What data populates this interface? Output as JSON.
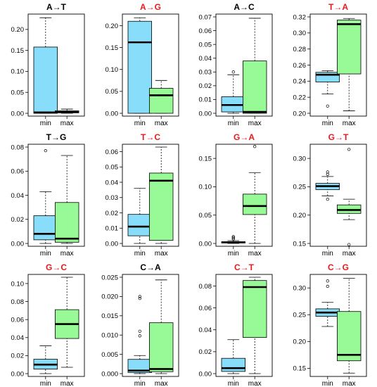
{
  "colors": {
    "min": "#87ddfa",
    "max": "#98fa96",
    "title_black": "#000000",
    "title_red": "#e8191c"
  },
  "chart_data": [
    {
      "type": "boxplot",
      "title": "A→T",
      "title_color": "red_false",
      "categories": [
        "min",
        "max"
      ],
      "ylim": [
        0,
        0.23
      ],
      "yticks": [
        0.0,
        0.05,
        0.1,
        0.15,
        0.2
      ],
      "ytick_labels": [
        "0.00",
        "0.05",
        "0.10",
        "0.15",
        "0.20"
      ],
      "boxes": [
        {
          "name": "min",
          "whisker_low": 0.0,
          "q1": 0.0,
          "median": 0.002,
          "q3": 0.158,
          "whisker_high": 0.228,
          "outliers": []
        },
        {
          "name": "max",
          "whisker_low": 0.0,
          "q1": 0.001,
          "median": 0.003,
          "q3": 0.006,
          "whisker_high": 0.01,
          "outliers": []
        }
      ]
    },
    {
      "type": "boxplot",
      "title": "A→G",
      "title_color": "red_true",
      "categories": [
        "min",
        "max"
      ],
      "ylim": [
        0,
        0.22
      ],
      "yticks": [
        0.0,
        0.05,
        0.1,
        0.15,
        0.2
      ],
      "ytick_labels": [
        "0.00",
        "0.05",
        "0.10",
        "0.15",
        "0.20"
      ],
      "boxes": [
        {
          "name": "min",
          "whisker_low": 0.0,
          "q1": 0.0,
          "median": 0.162,
          "q3": 0.21,
          "whisker_high": 0.218,
          "outliers": []
        },
        {
          "name": "max",
          "whisker_low": 0.0,
          "q1": 0.0,
          "median": 0.041,
          "q3": 0.057,
          "whisker_high": 0.075,
          "outliers": []
        }
      ]
    },
    {
      "type": "boxplot",
      "title": "A→C",
      "title_color": "red_false",
      "categories": [
        "min",
        "max"
      ],
      "ylim": [
        0,
        0.07
      ],
      "yticks": [
        0.0,
        0.01,
        0.02,
        0.03,
        0.04,
        0.05,
        0.06,
        0.07
      ],
      "ytick_labels": [
        "0.00",
        "0.01",
        "0.02",
        "0.03",
        "0.04",
        "0.05",
        "0.06",
        "0.07"
      ],
      "boxes": [
        {
          "name": "min",
          "whisker_low": 0.0,
          "q1": 0.001,
          "median": 0.006,
          "q3": 0.012,
          "whisker_high": 0.028,
          "outliers": [
            0.03
          ]
        },
        {
          "name": "max",
          "whisker_low": 0.0,
          "q1": 0.0,
          "median": 0.001,
          "q3": 0.038,
          "whisker_high": 0.069,
          "outliers": []
        }
      ]
    },
    {
      "type": "boxplot",
      "title": "T→A",
      "title_color": "red_true",
      "categories": [
        "min",
        "max"
      ],
      "ylim": [
        0.2,
        0.32
      ],
      "yticks": [
        0.2,
        0.22,
        0.24,
        0.26,
        0.28,
        0.3,
        0.32
      ],
      "ytick_labels": [
        "0.20",
        "0.22",
        "0.24",
        "0.26",
        "0.28",
        "0.30",
        "0.32"
      ],
      "boxes": [
        {
          "name": "min",
          "whisker_low": 0.224,
          "q1": 0.239,
          "median": 0.248,
          "q3": 0.251,
          "whisker_high": 0.253,
          "outliers": [
            0.209
          ]
        },
        {
          "name": "max",
          "whisker_low": 0.203,
          "q1": 0.249,
          "median": 0.311,
          "q3": 0.316,
          "whisker_high": 0.318,
          "outliers": []
        }
      ]
    },
    {
      "type": "boxplot",
      "title": "T→G",
      "title_color": "red_false",
      "categories": [
        "min",
        "max"
      ],
      "ylim": [
        0,
        0.08
      ],
      "yticks": [
        0.0,
        0.02,
        0.04,
        0.06,
        0.08
      ],
      "ytick_labels": [
        "0.00",
        "0.02",
        "0.04",
        "0.06",
        "0.08"
      ],
      "boxes": [
        {
          "name": "min",
          "whisker_low": 0.0,
          "q1": 0.003,
          "median": 0.008,
          "q3": 0.023,
          "whisker_high": 0.043,
          "outliers": [
            0.077
          ]
        },
        {
          "name": "max",
          "whisker_low": 0.0,
          "q1": 0.001,
          "median": 0.004,
          "q3": 0.034,
          "whisker_high": 0.073,
          "outliers": []
        }
      ]
    },
    {
      "type": "boxplot",
      "title": "T→C",
      "title_color": "red_true",
      "categories": [
        "min",
        "max"
      ],
      "ylim": [
        0,
        0.063
      ],
      "yticks": [
        0.0,
        0.01,
        0.02,
        0.03,
        0.04,
        0.05,
        0.06
      ],
      "ytick_labels": [
        "0.00",
        "0.01",
        "0.02",
        "0.03",
        "0.04",
        "0.05",
        "0.06"
      ],
      "boxes": [
        {
          "name": "min",
          "whisker_low": 0.0,
          "q1": 0.005,
          "median": 0.011,
          "q3": 0.019,
          "whisker_high": 0.036,
          "outliers": []
        },
        {
          "name": "max",
          "whisker_low": 0.0,
          "q1": 0.002,
          "median": 0.041,
          "q3": 0.046,
          "whisker_high": 0.063,
          "outliers": []
        }
      ]
    },
    {
      "type": "boxplot",
      "title": "G→A",
      "title_color": "red_true",
      "categories": [
        "min",
        "max"
      ],
      "ylim": [
        0,
        0.17
      ],
      "yticks": [
        0.0,
        0.05,
        0.1,
        0.15
      ],
      "ytick_labels": [
        "0.00",
        "0.05",
        "0.10",
        "0.15"
      ],
      "boxes": [
        {
          "name": "min",
          "whisker_low": 0.0,
          "q1": 0.001,
          "median": 0.002,
          "q3": 0.003,
          "whisker_high": 0.005,
          "outliers": [
            0.008,
            0.01,
            0.012
          ]
        },
        {
          "name": "max",
          "whisker_low": 0.0,
          "q1": 0.051,
          "median": 0.066,
          "q3": 0.087,
          "whisker_high": 0.125,
          "outliers": [
            0.171
          ]
        }
      ]
    },
    {
      "type": "boxplot",
      "title": "G→T",
      "title_color": "red_true",
      "categories": [
        "min",
        "max"
      ],
      "ylim": [
        0.15,
        0.32
      ],
      "yticks": [
        0.15,
        0.2,
        0.25,
        0.3
      ],
      "ytick_labels": [
        "0.15",
        "0.20",
        "0.25",
        "0.30"
      ],
      "boxes": [
        {
          "name": "min",
          "whisker_low": 0.234,
          "q1": 0.245,
          "median": 0.251,
          "q3": 0.256,
          "whisker_high": 0.268,
          "outliers": [
            0.272,
            0.276,
            0.228
          ]
        },
        {
          "name": "max",
          "whisker_low": 0.192,
          "q1": 0.203,
          "median": 0.209,
          "q3": 0.218,
          "whisker_high": 0.228,
          "outliers": [
            0.316,
            0.148
          ]
        }
      ]
    },
    {
      "type": "boxplot",
      "title": "G→C",
      "title_color": "red_true",
      "categories": [
        "min",
        "max"
      ],
      "ylim": [
        0,
        0.107
      ],
      "yticks": [
        0.0,
        0.02,
        0.04,
        0.06,
        0.08,
        0.1
      ],
      "ytick_labels": [
        "0.00",
        "0.02",
        "0.04",
        "0.06",
        "0.08",
        "0.10"
      ],
      "boxes": [
        {
          "name": "min",
          "whisker_low": 0.0,
          "q1": 0.005,
          "median": 0.01,
          "q3": 0.016,
          "whisker_high": 0.031,
          "outliers": []
        },
        {
          "name": "max",
          "whisker_low": 0.007,
          "q1": 0.039,
          "median": 0.055,
          "q3": 0.071,
          "whisker_high": 0.107,
          "outliers": []
        }
      ]
    },
    {
      "type": "boxplot",
      "title": "C→A",
      "title_color": "red_false",
      "categories": [
        "min",
        "max"
      ],
      "ylim": [
        0,
        0.025
      ],
      "yticks": [
        0.0,
        0.005,
        0.01,
        0.015,
        0.02,
        0.025
      ],
      "ytick_labels": [
        "0.000",
        "0.005",
        "0.010",
        "0.015",
        "0.020",
        "0.025"
      ],
      "boxes": [
        {
          "name": "min",
          "whisker_low": 0.0,
          "q1": 0.0003,
          "median": 0.0008,
          "q3": 0.0037,
          "whisker_high": 0.0047,
          "outliers": [
            0.0098,
            0.011,
            0.0195,
            0.02
          ]
        },
        {
          "name": "max",
          "whisker_low": 0.0,
          "q1": 0.0005,
          "median": 0.0012,
          "q3": 0.0132,
          "whisker_high": 0.0243,
          "outliers": []
        }
      ]
    },
    {
      "type": "boxplot",
      "title": "C→T",
      "title_color": "red_true",
      "categories": [
        "min",
        "max"
      ],
      "ylim": [
        0,
        0.088
      ],
      "yticks": [
        0.0,
        0.02,
        0.04,
        0.06,
        0.08
      ],
      "ytick_labels": [
        "0.00",
        "0.02",
        "0.04",
        "0.06",
        "0.08"
      ],
      "boxes": [
        {
          "name": "min",
          "whisker_low": 0.0,
          "q1": 0.002,
          "median": 0.005,
          "q3": 0.014,
          "whisker_high": 0.031,
          "outliers": []
        },
        {
          "name": "max",
          "whisker_low": 0.0,
          "q1": 0.033,
          "median": 0.079,
          "q3": 0.085,
          "whisker_high": 0.088,
          "outliers": []
        }
      ]
    },
    {
      "type": "boxplot",
      "title": "C→G",
      "title_color": "red_true",
      "categories": [
        "min",
        "max"
      ],
      "ylim": [
        0.14,
        0.32
      ],
      "yticks": [
        0.15,
        0.2,
        0.25,
        0.3
      ],
      "ytick_labels": [
        "0.15",
        "0.20",
        "0.25",
        "0.30"
      ],
      "boxes": [
        {
          "name": "min",
          "whisker_low": 0.228,
          "q1": 0.247,
          "median": 0.254,
          "q3": 0.261,
          "whisker_high": 0.273,
          "outliers": [
            0.303,
            0.313
          ]
        },
        {
          "name": "max",
          "whisker_low": 0.141,
          "q1": 0.164,
          "median": 0.175,
          "q3": 0.256,
          "whisker_high": 0.318,
          "outliers": []
        }
      ]
    }
  ]
}
